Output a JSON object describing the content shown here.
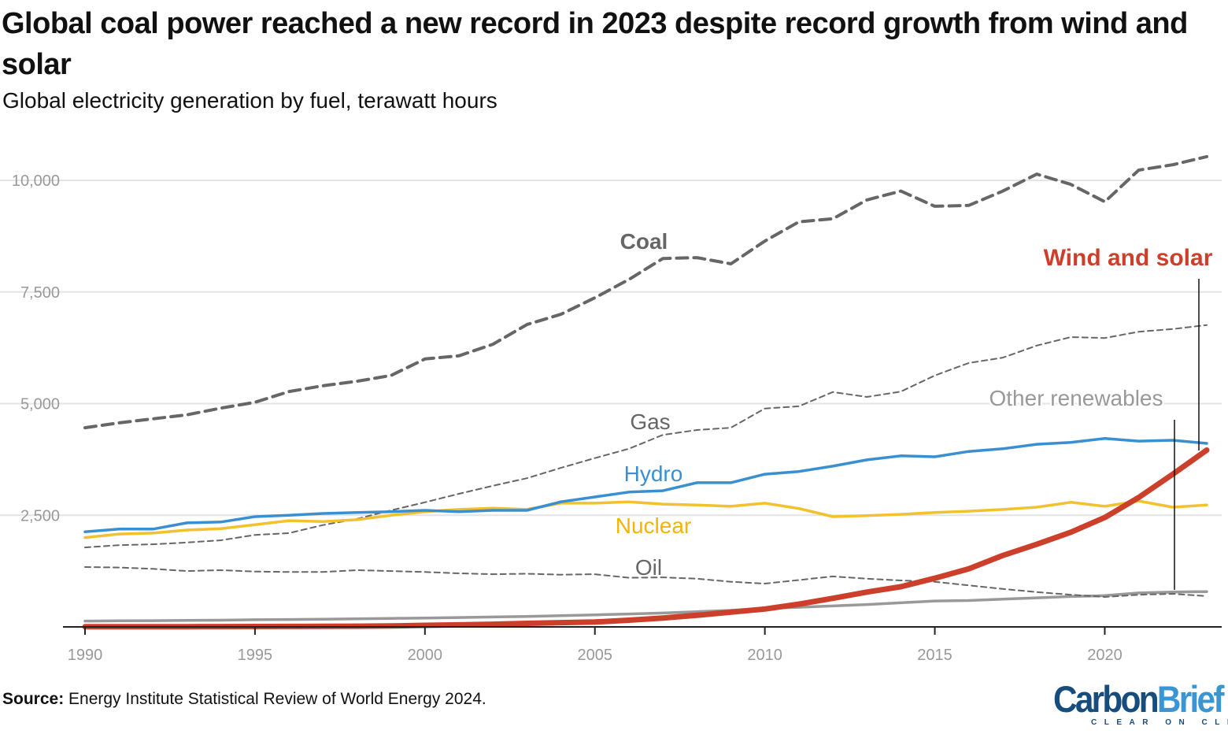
{
  "chart_data": {
    "type": "line",
    "title": "Global coal power reached a new record in 2023 despite record growth from wind and solar",
    "subtitle": "Global electricity generation by fuel, terawatt hours",
    "xlabel": "",
    "ylabel": "",
    "xlim": [
      1990,
      2023
    ],
    "ylim": [
      0,
      10500
    ],
    "grid": true,
    "legend": "inline labels",
    "x_ticks": [
      "1990",
      "1995",
      "2000",
      "2005",
      "2010",
      "2015",
      "2020"
    ],
    "y_ticks": [
      "2,500",
      "5,000",
      "7,500",
      "10,000"
    ],
    "y_tick_values": [
      2500,
      5000,
      7500,
      10000
    ],
    "x": [
      1990,
      1991,
      1992,
      1993,
      1994,
      1995,
      1996,
      1997,
      1998,
      1999,
      2000,
      2001,
      2002,
      2003,
      2004,
      2005,
      2006,
      2007,
      2008,
      2009,
      2010,
      2011,
      2012,
      2013,
      2014,
      2015,
      2016,
      2017,
      2018,
      2019,
      2020,
      2021,
      2022,
      2023
    ],
    "series": [
      {
        "name": "Coal",
        "color": "#666666",
        "style": "dashed-thick",
        "values": [
          4460,
          4570,
          4660,
          4750,
          4900,
          5030,
          5270,
          5400,
          5500,
          5630,
          6000,
          6070,
          6330,
          6770,
          7000,
          7370,
          7780,
          8250,
          8270,
          8130,
          8640,
          9070,
          9140,
          9560,
          9760,
          9420,
          9440,
          9760,
          10140,
          9910,
          9520,
          10230,
          10350,
          10530
        ]
      },
      {
        "name": "Gas",
        "color": "#666666",
        "style": "dashed-thin",
        "values": [
          1780,
          1830,
          1850,
          1890,
          1940,
          2060,
          2100,
          2280,
          2420,
          2610,
          2790,
          2980,
          3160,
          3330,
          3560,
          3780,
          3990,
          4300,
          4410,
          4460,
          4890,
          4940,
          5260,
          5150,
          5270,
          5630,
          5910,
          6030,
          6300,
          6490,
          6470,
          6610,
          6670,
          6760
        ]
      },
      {
        "name": "Hydro",
        "color": "#3a8fd0",
        "style": "solid",
        "values": [
          2130,
          2190,
          2190,
          2330,
          2350,
          2470,
          2500,
          2540,
          2560,
          2580,
          2610,
          2580,
          2610,
          2610,
          2800,
          2910,
          3020,
          3050,
          3230,
          3230,
          3420,
          3480,
          3600,
          3740,
          3830,
          3810,
          3930,
          3990,
          4090,
          4130,
          4220,
          4160,
          4180,
          4110
        ]
      },
      {
        "name": "Nuclear",
        "color": "#f2c12e",
        "label_color": "#f5b400",
        "style": "solid",
        "values": [
          2000,
          2080,
          2100,
          2170,
          2200,
          2290,
          2380,
          2360,
          2400,
          2500,
          2580,
          2630,
          2660,
          2630,
          2770,
          2770,
          2800,
          2750,
          2730,
          2700,
          2770,
          2650,
          2470,
          2490,
          2520,
          2560,
          2590,
          2630,
          2680,
          2790,
          2700,
          2820,
          2680,
          2730
        ]
      },
      {
        "name": "Oil",
        "color": "#666666",
        "style": "dashed-thin",
        "values": [
          1340,
          1330,
          1300,
          1250,
          1270,
          1240,
          1230,
          1230,
          1270,
          1250,
          1230,
          1200,
          1180,
          1190,
          1170,
          1180,
          1100,
          1110,
          1080,
          1010,
          970,
          1050,
          1130,
          1080,
          1040,
          1010,
          930,
          850,
          780,
          720,
          670,
          720,
          740,
          690
        ]
      },
      {
        "name": "Other renewables",
        "color": "#999999",
        "style": "solid",
        "values": [
          130,
          135,
          140,
          145,
          150,
          160,
          165,
          172,
          180,
          190,
          200,
          210,
          222,
          235,
          250,
          270,
          290,
          310,
          340,
          370,
          420,
          440,
          470,
          500,
          540,
          580,
          590,
          620,
          650,
          680,
          700,
          760,
          780,
          790
        ]
      },
      {
        "name": "Wind and solar",
        "color": "#cc3f2a",
        "style": "solid-thick",
        "values": [
          4,
          5,
          5,
          6,
          7,
          8,
          10,
          12,
          16,
          22,
          35,
          45,
          60,
          80,
          95,
          110,
          150,
          200,
          260,
          330,
          400,
          510,
          640,
          780,
          900,
          1090,
          1300,
          1600,
          1850,
          2120,
          2450,
          2900,
          3420,
          3960
        ]
      }
    ]
  },
  "source": {
    "label": "Source:",
    "text": " Energy Institute Statistical Review of World Energy 2024."
  },
  "logo": {
    "part1": "Carbon",
    "part2": "Brief",
    "tagline": "CLEAR ON CLIMATE"
  }
}
